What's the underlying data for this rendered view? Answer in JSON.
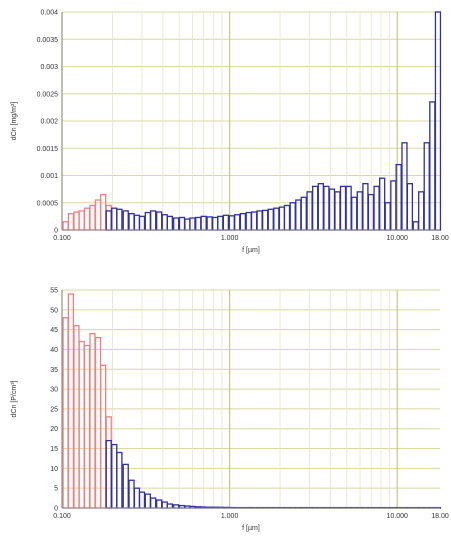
{
  "chart_data": [
    {
      "type": "bar",
      "xscale": "log",
      "xlabel": "f [µm]",
      "ylabel": "dCn [mg/m³]",
      "xlim": [
        0.1,
        18
      ],
      "ylim": [
        0,
        0.004
      ],
      "xtick_labels": [
        "0.100",
        "1.000",
        "10.000",
        "18.00"
      ],
      "xtick_values": [
        0.1,
        1.0,
        10.0,
        18.0
      ],
      "ytick_labels": [
        "0",
        "0.0005",
        "0.001",
        "0.0015",
        "0.002",
        "0.0025",
        "0.003",
        "0.0035",
        "0.004"
      ],
      "ytick_values": [
        0,
        0.0005,
        0.001,
        0.0015,
        0.002,
        0.0025,
        0.003,
        0.0035,
        0.004
      ],
      "grid": true,
      "series": [
        {
          "color": "#f08080",
          "x": [
            0.105,
            0.113,
            0.122,
            0.131,
            0.141,
            0.152,
            0.164,
            0.176,
            0.19
          ],
          "values": [
            0.00015,
            0.0003,
            0.00033,
            0.00035,
            0.0004,
            0.00045,
            0.00055,
            0.00065,
            0.00045
          ]
        },
        {
          "color": "#3030a0",
          "x": [
            0.19,
            0.205,
            0.22,
            0.24,
            0.26,
            0.28,
            0.3,
            0.325,
            0.35,
            0.38,
            0.41,
            0.44,
            0.48,
            0.52,
            0.56,
            0.6,
            0.65,
            0.7,
            0.76,
            0.82,
            0.88,
            0.95,
            1.03,
            1.11,
            1.2,
            1.3,
            1.4,
            1.51,
            1.63,
            1.76,
            1.9,
            2.05,
            2.2,
            2.38,
            2.57,
            2.77,
            3.0,
            3.24,
            3.5,
            3.78,
            4.08,
            4.4,
            4.75,
            5.13,
            5.54,
            5.98,
            6.46,
            6.97,
            7.53,
            8.13,
            8.78,
            9.48,
            10.2,
            11.05,
            11.9,
            12.9,
            13.9,
            15.0,
            16.2,
            17.5
          ],
          "values": [
            0.00035,
            0.0004,
            0.00038,
            0.00035,
            0.0003,
            0.00027,
            0.00025,
            0.00032,
            0.00035,
            0.00033,
            0.00028,
            0.00025,
            0.00022,
            0.00023,
            0.0002,
            0.00022,
            0.00023,
            0.00025,
            0.00024,
            0.00023,
            0.00025,
            0.00027,
            0.00026,
            0.00028,
            0.0003,
            0.00032,
            0.00033,
            0.00035,
            0.00036,
            0.00038,
            0.0004,
            0.00042,
            0.00045,
            0.0005,
            0.00055,
            0.0006,
            0.0007,
            0.0008,
            0.00085,
            0.0008,
            0.00075,
            0.0007,
            0.0008,
            0.0008,
            0.0006,
            0.0007,
            0.00085,
            0.00065,
            0.0008,
            0.00095,
            0.0005,
            0.0009,
            0.0012,
            0.0016,
            0.00085,
            0.00015,
            0.0007,
            0.0016,
            0.00235,
            0.004
          ]
        }
      ]
    },
    {
      "type": "bar",
      "xscale": "log",
      "xlabel": "f [µm]",
      "ylabel": "dCn [P/cm³]",
      "xlim": [
        0.1,
        18
      ],
      "ylim": [
        0,
        55
      ],
      "xtick_labels": [
        "0.100",
        "1.000",
        "10.000",
        "18.00"
      ],
      "xtick_values": [
        0.1,
        1.0,
        10.0,
        18.0
      ],
      "ytick_labels": [
        "0",
        "5",
        "10",
        "15",
        "20",
        "25",
        "30",
        "35",
        "40",
        "45",
        "50",
        "55"
      ],
      "ytick_values": [
        0,
        5,
        10,
        15,
        20,
        25,
        30,
        35,
        40,
        45,
        50,
        55
      ],
      "grid": true,
      "series": [
        {
          "color": "#f08080",
          "x": [
            0.105,
            0.113,
            0.122,
            0.131,
            0.141,
            0.152,
            0.164,
            0.176,
            0.19
          ],
          "values": [
            48,
            54,
            46,
            42,
            41,
            44,
            43,
            36,
            23
          ]
        },
        {
          "color": "#3030a0",
          "x": [
            0.19,
            0.205,
            0.22,
            0.24,
            0.26,
            0.28,
            0.3,
            0.325,
            0.35,
            0.38,
            0.41,
            0.44,
            0.48,
            0.52,
            0.56,
            0.6,
            0.65,
            0.7,
            0.76,
            0.82,
            0.88,
            0.95,
            1.03,
            1.11,
            1.2,
            1.3,
            1.4,
            1.51,
            1.63,
            1.76,
            1.9,
            2.05,
            2.2,
            2.38,
            2.57,
            2.77,
            3.0,
            3.24,
            3.5,
            3.78,
            4.08,
            4.4,
            4.75,
            5.13,
            5.54,
            5.98,
            6.46,
            6.97,
            7.53,
            8.13,
            8.78,
            9.48,
            10.2,
            11.05,
            11.9,
            12.9,
            13.9,
            15.0,
            16.2,
            17.5
          ],
          "values": [
            17,
            16,
            14,
            11,
            7,
            5,
            4,
            3.5,
            2.5,
            2,
            1.5,
            1,
            0.8,
            0.6,
            0.5,
            0.4,
            0.3,
            0.25,
            0.2,
            0.2,
            0.18,
            0.15,
            0.12,
            0.1,
            0.1,
            0.1,
            0.1,
            0.1,
            0.1,
            0.1,
            0.1,
            0.1,
            0.1,
            0.1,
            0.1,
            0.1,
            0.1,
            0.1,
            0.1,
            0.1,
            0.1,
            0.1,
            0.1,
            0.1,
            0.1,
            0.1,
            0.1,
            0.1,
            0.1,
            0.1,
            0.1,
            0.1,
            0.1,
            0.1,
            0.1,
            0.1,
            0.1,
            0.1,
            0.1,
            0.1
          ]
        }
      ]
    }
  ]
}
